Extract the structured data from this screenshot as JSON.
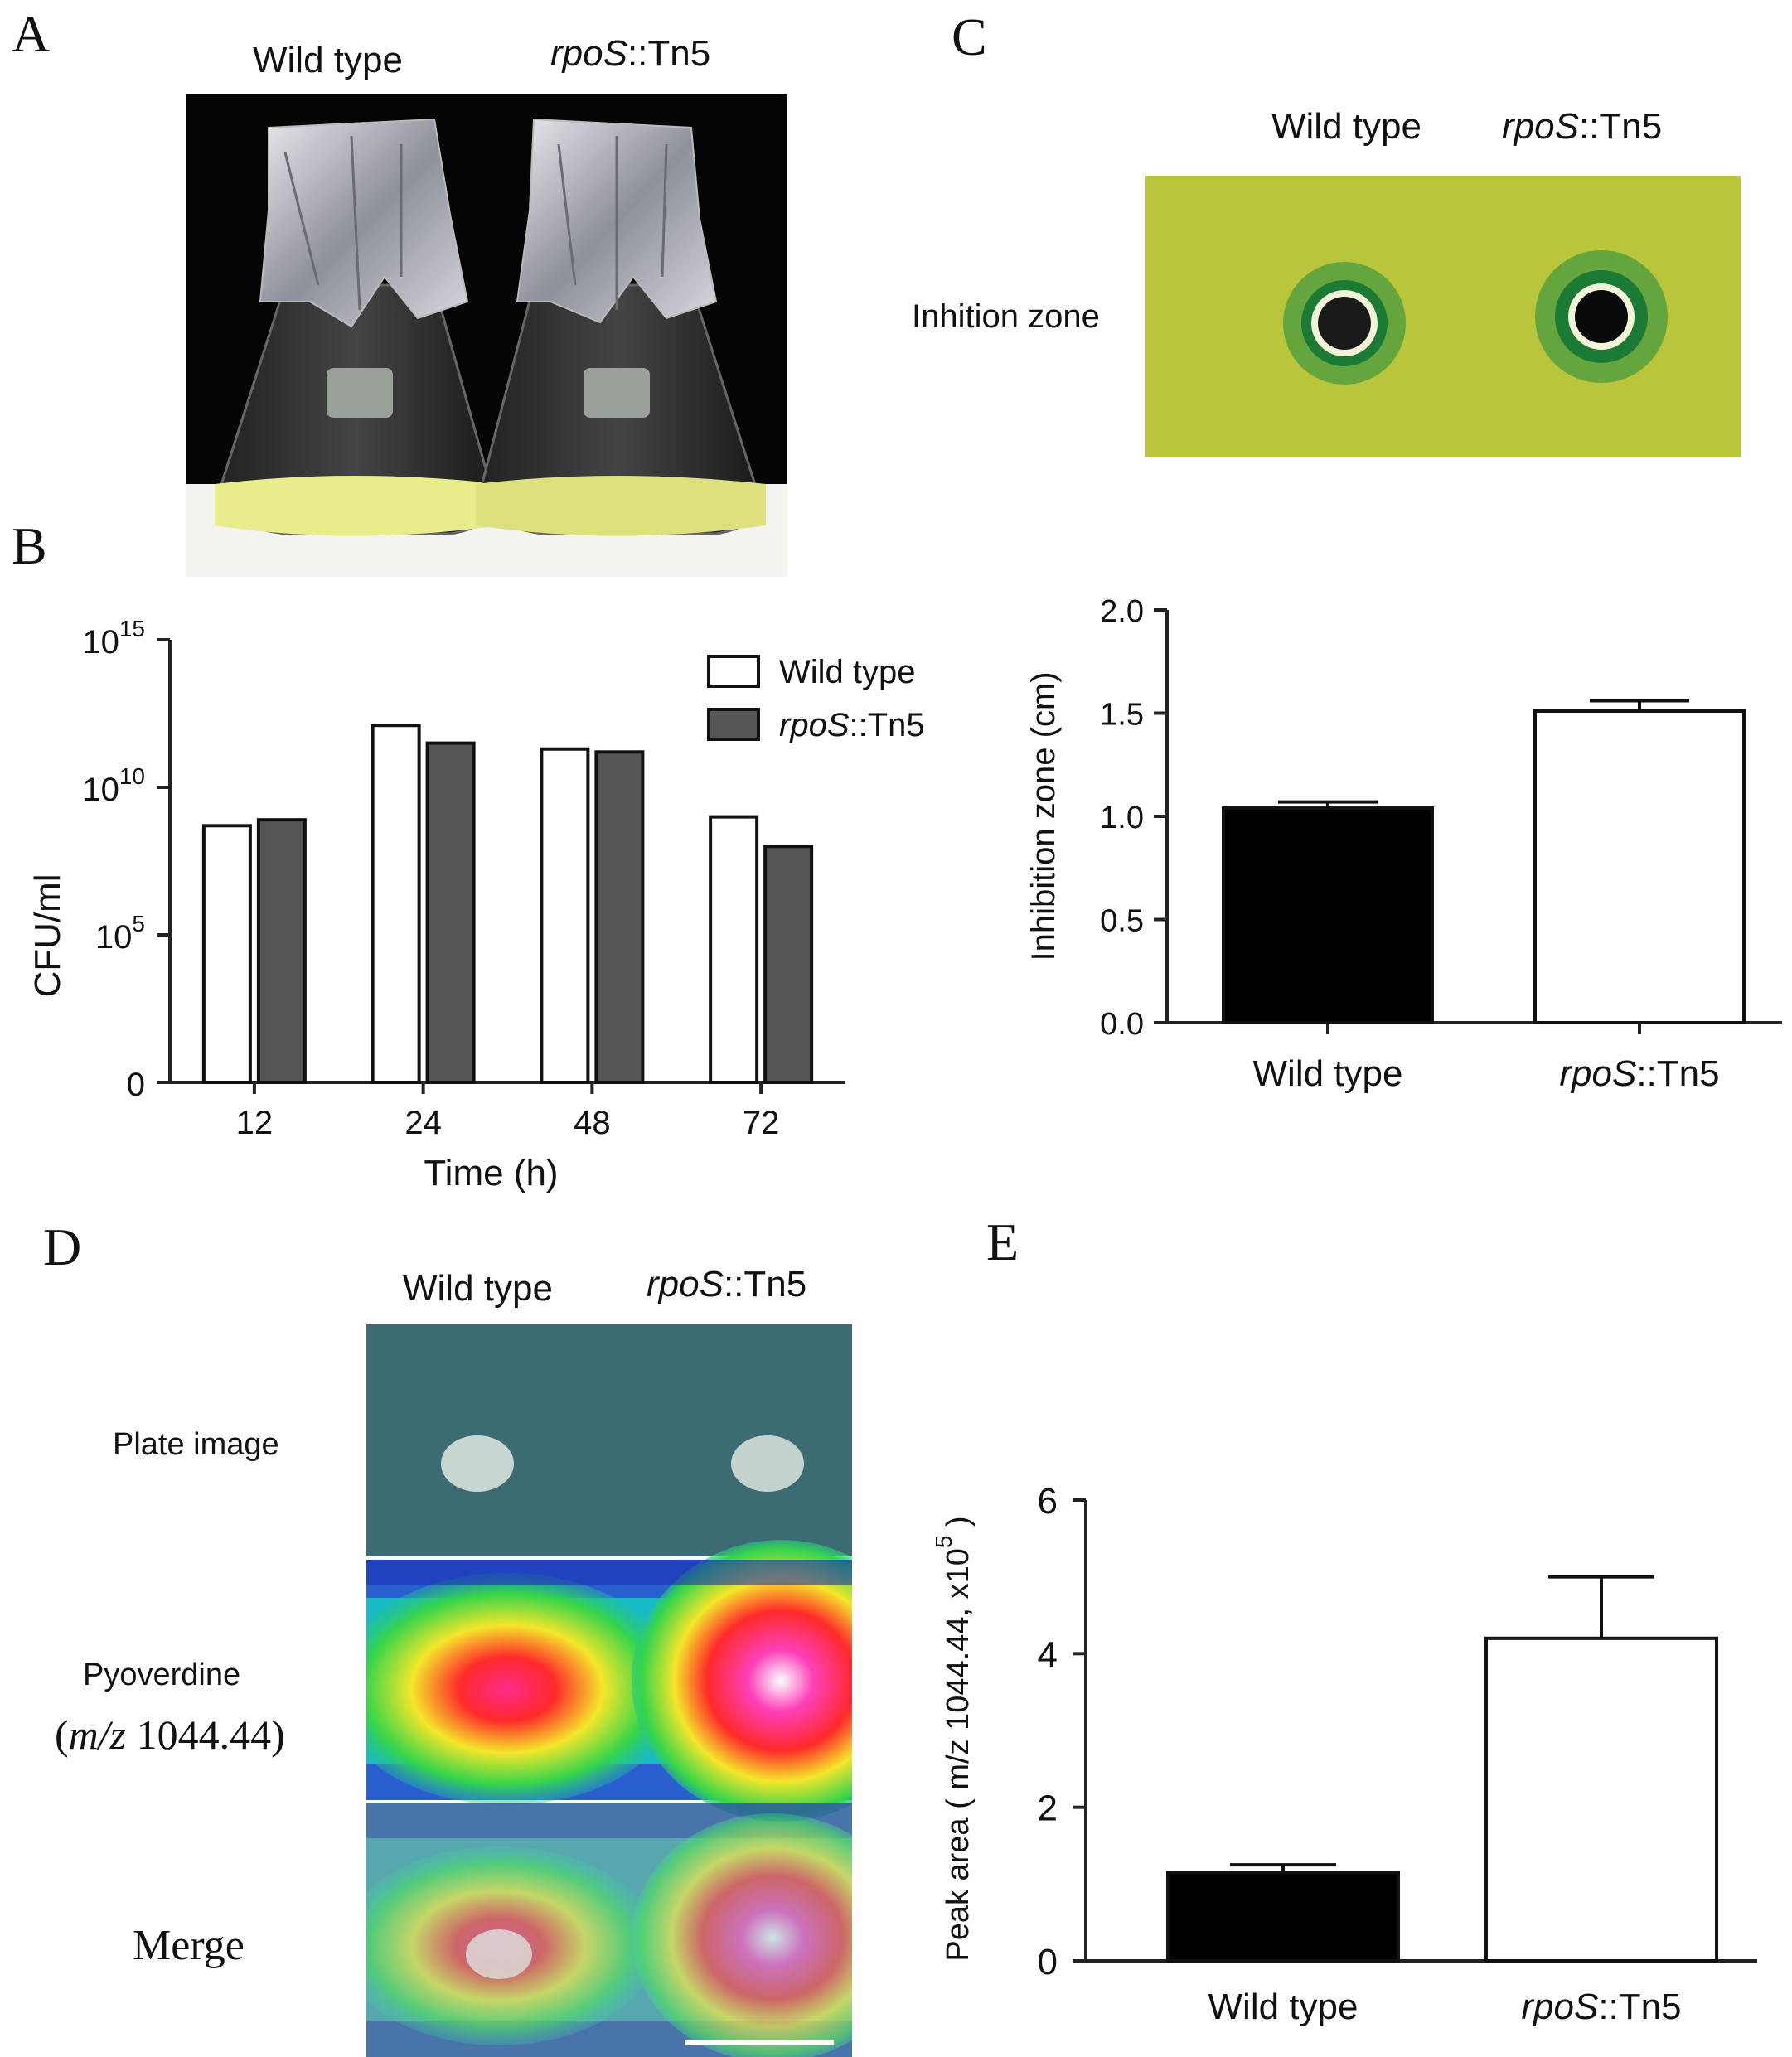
{
  "panels": {
    "A": {
      "letter": "A",
      "labels": [
        "Wild type",
        "rpoS::Tn5"
      ],
      "label_parts": [
        {
          "italic": "",
          "plain": "Wild type"
        },
        {
          "italic": "rpoS",
          "plain": "::Tn5"
        }
      ],
      "background_color": "#050505",
      "culture_color": "#e8ec8a"
    },
    "B": {
      "letter": "B"
    },
    "C": {
      "letter": "C",
      "label_parts": [
        {
          "italic": "",
          "plain": "Wild type"
        },
        {
          "italic": "rpoS",
          "plain": "::Tn5"
        }
      ],
      "row_label": "Inhition zone",
      "plate_color": "#b9c53a",
      "zone_color": "#1f8a3f"
    },
    "D": {
      "letter": "D",
      "label_parts": [
        {
          "italic": "",
          "plain": "Wild type"
        },
        {
          "italic": "rpoS",
          "plain": "::Tn5"
        }
      ],
      "row_labels": {
        "plate": "Plate image",
        "pyo_line1": "Pyoverdine",
        "pyo_line2_open": "(",
        "pyo_line2_italic": "m/z",
        "pyo_line2_rest": " 1044.44)",
        "merge": "Merge"
      },
      "plate_color": "#3d6b73"
    },
    "E": {
      "letter": "E"
    }
  },
  "chart_data": [
    {
      "id": "B",
      "type": "bar",
      "categories": [
        "12",
        "24",
        "48",
        "72"
      ],
      "series": [
        {
          "name": "Wild type",
          "values": [
            8.7,
            12.1,
            11.3,
            9.0
          ],
          "color": "#ffffff"
        },
        {
          "name": "rpoS::Tn5",
          "values": [
            8.9,
            11.5,
            11.2,
            8.0
          ],
          "color": "#555555"
        }
      ],
      "legend_parts": [
        {
          "italic": "",
          "plain": "Wild type"
        },
        {
          "italic": "rpoS",
          "plain": "::Tn5"
        }
      ],
      "xlabel": "Time (h)",
      "ylabel": "CFU/ml",
      "ylim": [
        0,
        15
      ],
      "yscale": "log",
      "yticks": [
        {
          "v": 0,
          "label": "0",
          "exp": ""
        },
        {
          "v": 5,
          "label": "10",
          "exp": "5"
        },
        {
          "v": 10,
          "label": "10",
          "exp": "10"
        },
        {
          "v": 15,
          "label": "10",
          "exp": "15"
        }
      ],
      "legend": "top-right"
    },
    {
      "id": "C",
      "type": "bar",
      "categories": [
        "Wild type",
        "rpoS::Tn5"
      ],
      "category_parts": [
        {
          "italic": "",
          "plain": "Wild type"
        },
        {
          "italic": "rpoS",
          "plain": "::Tn5"
        }
      ],
      "values": [
        1.04,
        1.51
      ],
      "errors": [
        0.03,
        0.05
      ],
      "colors": [
        "#000000",
        "#ffffff"
      ],
      "ylabel": "Inhibition zone (cm)",
      "ylim": [
        0,
        2.0
      ],
      "yticks": [
        "0.0",
        "0.5",
        "1.0",
        "1.5",
        "2.0"
      ]
    },
    {
      "id": "E",
      "type": "bar",
      "categories": [
        "Wild type",
        "rpoS::Tn5"
      ],
      "category_parts": [
        {
          "italic": "",
          "plain": "Wild type"
        },
        {
          "italic": "rpoS",
          "plain": "::Tn5"
        }
      ],
      "values": [
        1.15,
        4.2
      ],
      "errors": [
        0.1,
        0.8
      ],
      "colors": [
        "#000000",
        "#ffffff"
      ],
      "ylabel_main": "Peak area ( m/z 1044.44, x10",
      "ylabel_exp": "5",
      "ylabel_close": " )",
      "ylim": [
        0,
        6
      ],
      "yticks": [
        "0",
        "2",
        "4",
        "6"
      ]
    }
  ]
}
